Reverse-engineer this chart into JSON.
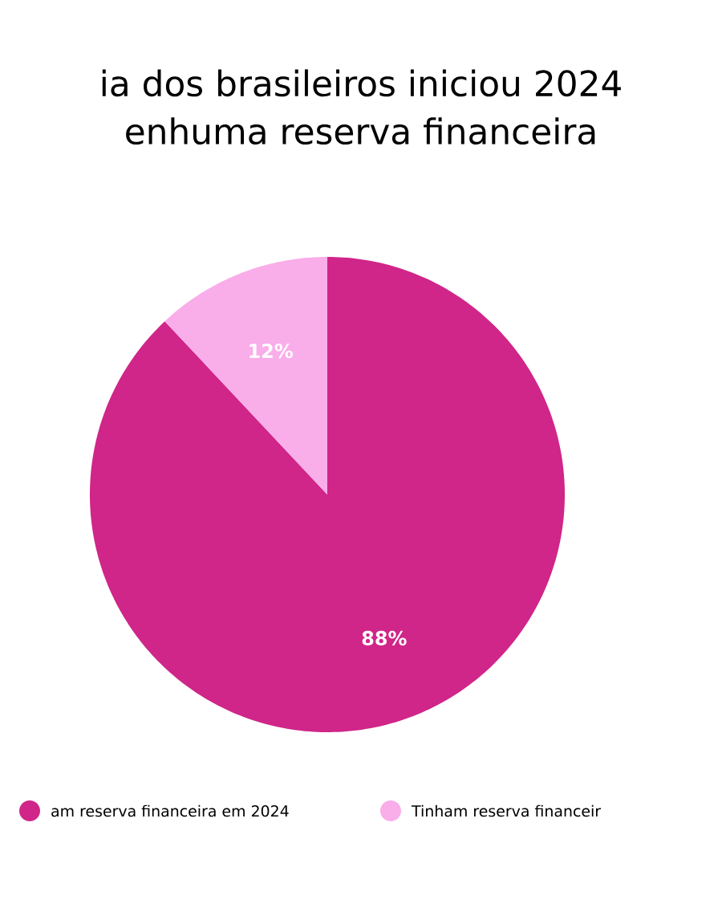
{
  "chart_data": {
    "type": "pie",
    "title": "ia dos brasileiros iniciou 2024\nenhuma reserva financeira",
    "categories": [
      "am reserva financeira em 2024",
      "Tinham reserva financeir"
    ],
    "values": [
      88,
      12
    ],
    "colors": [
      "#d02589",
      "#f9ade9"
    ],
    "value_labels": [
      "88%",
      "12%"
    ],
    "legend": "bottom"
  }
}
